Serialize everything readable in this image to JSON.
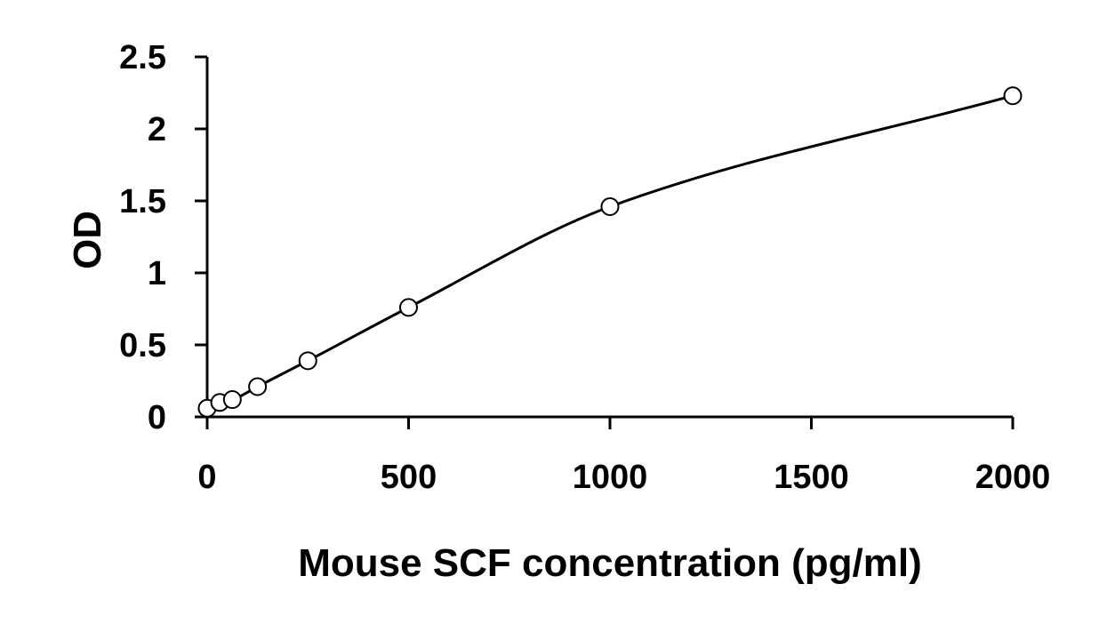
{
  "chart_data": {
    "type": "scatter",
    "title": "",
    "xlabel": "Mouse SCF concentration (pg/ml)",
    "ylabel": "OD",
    "xlim": [
      0,
      2000
    ],
    "ylim": [
      0,
      2.5
    ],
    "x_ticks": [
      0,
      500,
      1000,
      1500,
      2000
    ],
    "y_ticks": [
      0,
      0.5,
      1,
      1.5,
      2,
      2.5
    ],
    "x_tick_labels": [
      "0",
      "500",
      "1000",
      "1500",
      "2000"
    ],
    "y_tick_labels": [
      "0",
      "0.5",
      "1",
      "1.5",
      "2",
      "2.5"
    ],
    "grid": false,
    "legend": "none",
    "marker": "open-circle",
    "trendline": "smooth-fit",
    "colors": {
      "line": "#000000",
      "marker_edge": "#000000",
      "marker_fill": "#ffffff",
      "background": "#ffffff"
    },
    "series": [
      {
        "points": [
          {
            "x": 0,
            "y": 0.06
          },
          {
            "x": 31.25,
            "y": 0.1
          },
          {
            "x": 62.5,
            "y": 0.12
          },
          {
            "x": 125,
            "y": 0.21
          },
          {
            "x": 250,
            "y": 0.39
          },
          {
            "x": 500,
            "y": 0.76
          },
          {
            "x": 1000,
            "y": 1.46
          },
          {
            "x": 2000,
            "y": 2.23
          }
        ]
      }
    ]
  }
}
